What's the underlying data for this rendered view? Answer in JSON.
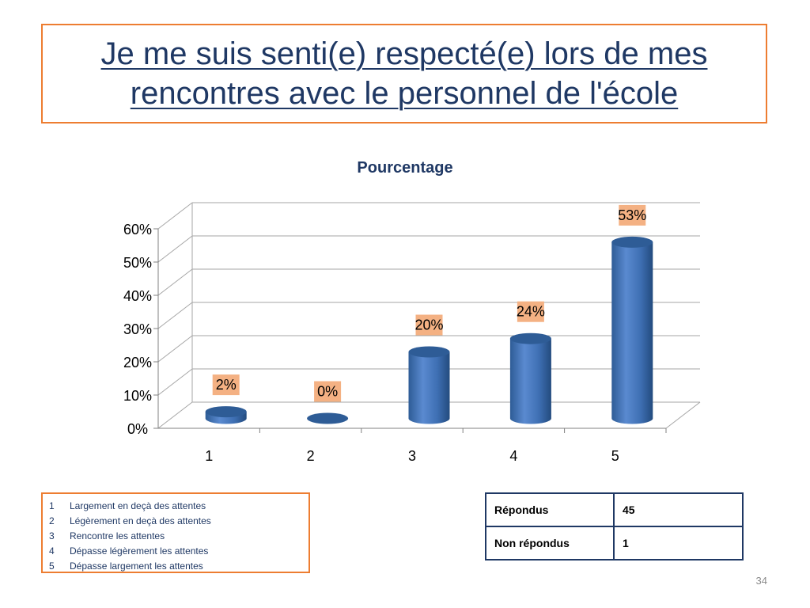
{
  "slide": {
    "title": "Je me suis senti(e) respecté(e) lors de mes rencontres avec le personnel de l'école",
    "page_number": "34"
  },
  "legend": {
    "items": [
      {
        "num": "1",
        "label": "Largement en deçà des attentes"
      },
      {
        "num": "2",
        "label": "Légèrement en deçà des attentes"
      },
      {
        "num": "3",
        "label": "Rencontre les attentes"
      },
      {
        "num": "4",
        "label": "Dépasse légèrement les attentes"
      },
      {
        "num": "5",
        "label": "Dépasse largement les attentes"
      }
    ]
  },
  "stats": {
    "rows": [
      {
        "label": "Répondus",
        "value": "45"
      },
      {
        "label": "Non répondus",
        "value": "1"
      }
    ]
  },
  "colors": {
    "title": "#1F3864",
    "accent_border": "#ED7D31",
    "bar": "#4F81BD",
    "bar_dark": "#2E5C96",
    "label_bg": "#F4B183"
  },
  "chart_data": {
    "type": "bar",
    "title": "Pourcentage",
    "xlabel": "",
    "ylabel": "",
    "categories": [
      "1",
      "2",
      "3",
      "4",
      "5"
    ],
    "values": [
      2,
      0,
      20,
      24,
      53
    ],
    "data_labels": [
      "2%",
      "0%",
      "20%",
      "24%",
      "53%"
    ],
    "ylim": [
      0,
      60
    ],
    "yticks": [
      0,
      10,
      20,
      30,
      40,
      50,
      60
    ],
    "ytick_labels": [
      "0%",
      "10%",
      "20%",
      "30%",
      "40%",
      "50%",
      "60%"
    ],
    "grid": true,
    "style": "3d-cylinder"
  }
}
